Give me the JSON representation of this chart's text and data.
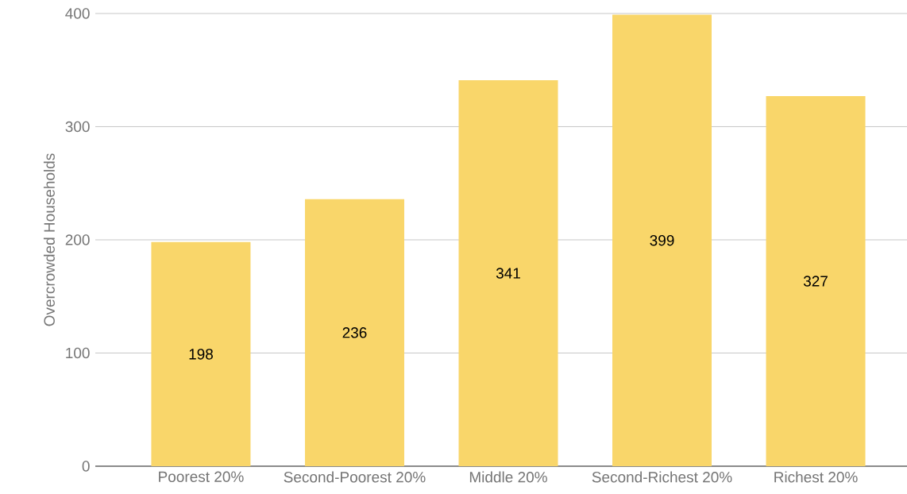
{
  "chart_data": {
    "type": "bar",
    "ylabel": "Overcrowded Households",
    "categories": [
      "Poorest 20%",
      "Second-Poorest 20%",
      "Middle 20%",
      "Second-Richest 20%",
      "Richest 20%"
    ],
    "values": [
      198,
      236,
      341,
      399,
      327
    ],
    "color": "#f9d66a",
    "ylim": [
      0,
      400
    ],
    "yticks": [
      0,
      100,
      200,
      300,
      400
    ],
    "grid": "y",
    "data_labels": true
  }
}
